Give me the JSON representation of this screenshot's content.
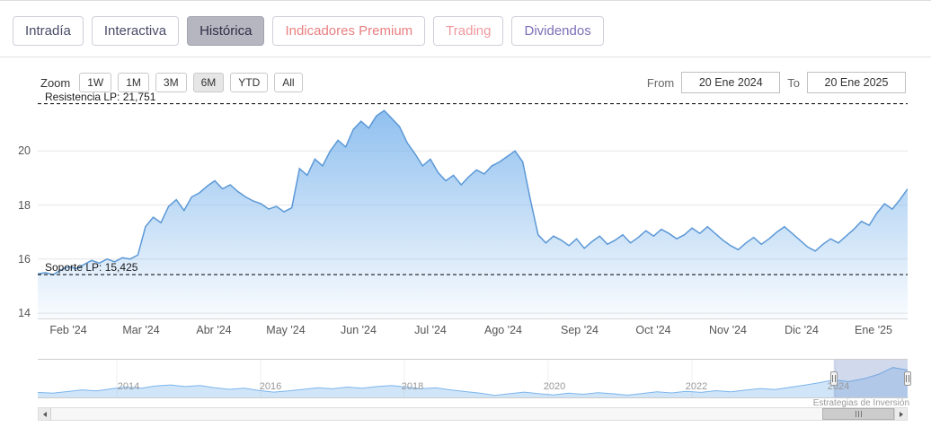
{
  "tabs": [
    {
      "label": "Intradía"
    },
    {
      "label": "Interactiva"
    },
    {
      "label": "Histórica"
    },
    {
      "label": "Indicadores Premium"
    },
    {
      "label": "Trading"
    },
    {
      "label": "Dividendos"
    }
  ],
  "toolbar": {
    "zoom_label": "Zoom",
    "zoom_buttons": [
      "1W",
      "1M",
      "3M",
      "6M",
      "YTD",
      "All"
    ],
    "active_zoom": "6M",
    "from_label": "From",
    "from_value": "20 Ene 2024",
    "to_label": "To",
    "to_value": "20 Ene 2025"
  },
  "chart_data": {
    "type": "area",
    "title": "",
    "xlabel": "",
    "ylabel": "",
    "y_ticks": [
      20,
      18,
      16,
      14
    ],
    "y_range": [
      13.77,
      21.97
    ],
    "grid": "horizontal",
    "resistance": {
      "label": "Resistencia LP: 21,751",
      "value": 21.751
    },
    "support": {
      "label": "Soporte LP: 15,425",
      "value": 15.425
    },
    "x_tick_labels": [
      "Feb '24",
      "Mar '24",
      "Abr '24",
      "May '24",
      "Jun '24",
      "Jul '24",
      "Ago '24",
      "Sep '24",
      "Oct '24",
      "Nov '24",
      "Dic '24",
      "Ene '25"
    ],
    "series": [
      {
        "name": "Precio",
        "color": "#5b98d6",
        "values": [
          15.45,
          15.5,
          15.42,
          15.6,
          15.72,
          15.65,
          15.8,
          15.95,
          15.85,
          16.0,
          15.9,
          16.05,
          16.0,
          16.15,
          17.2,
          17.55,
          17.35,
          17.95,
          18.2,
          17.8,
          18.3,
          18.45,
          18.7,
          18.9,
          18.6,
          18.75,
          18.5,
          18.3,
          18.15,
          18.05,
          17.85,
          17.95,
          17.75,
          17.9,
          19.35,
          19.1,
          19.7,
          19.45,
          20.0,
          20.4,
          20.15,
          20.8,
          21.1,
          20.85,
          21.3,
          21.5,
          21.2,
          20.9,
          20.3,
          19.9,
          19.45,
          19.7,
          19.2,
          18.9,
          19.1,
          18.75,
          19.05,
          19.3,
          19.15,
          19.45,
          19.6,
          19.8,
          20.0,
          19.6,
          18.2,
          16.9,
          16.6,
          16.85,
          16.7,
          16.5,
          16.75,
          16.4,
          16.65,
          16.85,
          16.55,
          16.7,
          16.9,
          16.6,
          16.8,
          17.05,
          16.85,
          17.1,
          16.95,
          16.75,
          16.9,
          17.15,
          16.95,
          17.2,
          16.95,
          16.7,
          16.5,
          16.35,
          16.6,
          16.8,
          16.55,
          16.75,
          17.0,
          17.2,
          16.95,
          16.7,
          16.45,
          16.3,
          16.55,
          16.75,
          16.6,
          16.85,
          17.1,
          17.4,
          17.25,
          17.7,
          18.05,
          17.85,
          18.2,
          18.6
        ]
      }
    ],
    "navigator": {
      "year_labels": [
        "2014",
        "2016",
        "2018",
        "2020",
        "2022",
        "2024"
      ],
      "y_range": [
        9,
        22
      ],
      "values": [
        10.5,
        10.2,
        10.8,
        11.4,
        11.0,
        11.8,
        12.4,
        12.0,
        12.8,
        13.2,
        12.6,
        13.0,
        12.2,
        11.6,
        12.0,
        11.2,
        10.6,
        11.0,
        11.6,
        12.2,
        11.8,
        12.4,
        12.0,
        12.6,
        13.0,
        12.4,
        11.8,
        12.2,
        11.4,
        10.8,
        10.2,
        9.4,
        10.0,
        10.6,
        10.0,
        9.6,
        10.2,
        9.8,
        10.4,
        10.0,
        9.5,
        10.1,
        10.7,
        10.3,
        10.9,
        10.5,
        11.1,
        10.7,
        11.3,
        11.9,
        11.5,
        12.3,
        13.1,
        14.0,
        15.0,
        14.4,
        15.4,
        17.0,
        19.5,
        18.6
      ],
      "selection": [
        0.915,
        1.0
      ]
    }
  },
  "credits": "Estrategias de Inversión"
}
